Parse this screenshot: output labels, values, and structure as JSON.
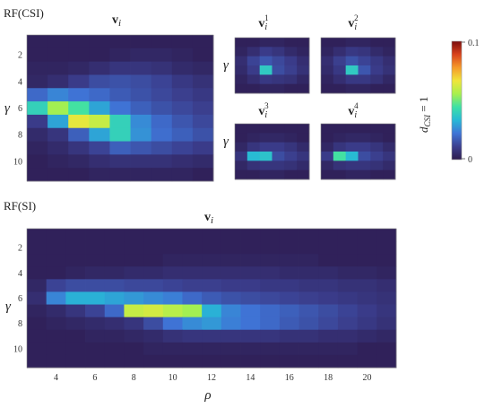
{
  "figure": {
    "section_labels": [
      "RF(CSI)",
      "RF(SI)"
    ],
    "side_label": "d_CSI = 1"
  },
  "colorbar": {
    "max_label": "0.1",
    "min_label": "0",
    "colormap": [
      "#2d1b4e",
      "#3b3f8f",
      "#3f74d6",
      "#27b9d6",
      "#3ee0a6",
      "#a8f04e",
      "#f0e53a",
      "#f59a2a",
      "#d9421c",
      "#7a0d0d"
    ]
  },
  "chart_data": [
    {
      "type": "heatmap",
      "title": "v_i",
      "panel": "RF(CSI)",
      "ylabel": "γ",
      "yticks": [
        "2",
        "4",
        "6",
        "8",
        "10"
      ],
      "rows": 11,
      "cols": 9,
      "values": [
        [
          0.002,
          0.002,
          0.002,
          0.002,
          0.002,
          0.002,
          0.002,
          0.002,
          0.002
        ],
        [
          0.002,
          0.002,
          0.002,
          0.002,
          0.003,
          0.004,
          0.004,
          0.003,
          0.002
        ],
        [
          0.003,
          0.003,
          0.004,
          0.006,
          0.008,
          0.008,
          0.007,
          0.005,
          0.004
        ],
        [
          0.004,
          0.006,
          0.01,
          0.014,
          0.015,
          0.014,
          0.012,
          0.009,
          0.007
        ],
        [
          0.02,
          0.025,
          0.022,
          0.02,
          0.017,
          0.015,
          0.013,
          0.011,
          0.009
        ],
        [
          0.04,
          0.055,
          0.045,
          0.03,
          0.022,
          0.018,
          0.015,
          0.013,
          0.011
        ],
        [
          0.01,
          0.03,
          0.065,
          0.06,
          0.04,
          0.026,
          0.02,
          0.016,
          0.013
        ],
        [
          0.005,
          0.008,
          0.018,
          0.03,
          0.04,
          0.027,
          0.021,
          0.018,
          0.015
        ],
        [
          0.003,
          0.005,
          0.008,
          0.012,
          0.018,
          0.016,
          0.014,
          0.012,
          0.01
        ],
        [
          0.002,
          0.003,
          0.004,
          0.006,
          0.007,
          0.007,
          0.007,
          0.006,
          0.005
        ],
        [
          0.002,
          0.002,
          0.002,
          0.003,
          0.003,
          0.003,
          0.003,
          0.003,
          0.002
        ]
      ]
    },
    {
      "type": "heatmap",
      "title": "v_i^1",
      "panel": "RF(CSI)",
      "ylabel": "γ",
      "rows": 6,
      "cols": 6,
      "values": [
        [
          0.002,
          0.002,
          0.003,
          0.003,
          0.002,
          0.002
        ],
        [
          0.003,
          0.006,
          0.01,
          0.008,
          0.005,
          0.003
        ],
        [
          0.006,
          0.012,
          0.016,
          0.013,
          0.01,
          0.006
        ],
        [
          0.005,
          0.01,
          0.038,
          0.014,
          0.011,
          0.007
        ],
        [
          0.003,
          0.006,
          0.009,
          0.008,
          0.007,
          0.004
        ],
        [
          0.002,
          0.002,
          0.003,
          0.003,
          0.002,
          0.002
        ]
      ]
    },
    {
      "type": "heatmap",
      "title": "v_i^2",
      "panel": "RF(CSI)",
      "rows": 6,
      "cols": 6,
      "values": [
        [
          0.002,
          0.002,
          0.003,
          0.003,
          0.002,
          0.002
        ],
        [
          0.003,
          0.006,
          0.009,
          0.008,
          0.005,
          0.003
        ],
        [
          0.006,
          0.011,
          0.015,
          0.012,
          0.009,
          0.006
        ],
        [
          0.005,
          0.009,
          0.038,
          0.016,
          0.01,
          0.007
        ],
        [
          0.003,
          0.006,
          0.009,
          0.009,
          0.007,
          0.004
        ],
        [
          0.002,
          0.002,
          0.003,
          0.003,
          0.002,
          0.002
        ]
      ]
    },
    {
      "type": "heatmap",
      "title": "v_i^3",
      "panel": "RF(CSI)",
      "ylabel": "γ",
      "rows": 6,
      "cols": 6,
      "values": [
        [
          0.002,
          0.002,
          0.002,
          0.002,
          0.002,
          0.002
        ],
        [
          0.002,
          0.003,
          0.004,
          0.004,
          0.003,
          0.002
        ],
        [
          0.004,
          0.008,
          0.01,
          0.01,
          0.008,
          0.005
        ],
        [
          0.008,
          0.034,
          0.036,
          0.014,
          0.011,
          0.008
        ],
        [
          0.004,
          0.007,
          0.008,
          0.008,
          0.007,
          0.005
        ],
        [
          0.002,
          0.002,
          0.003,
          0.003,
          0.002,
          0.002
        ]
      ]
    },
    {
      "type": "heatmap",
      "title": "v_i^4",
      "panel": "RF(CSI)",
      "rows": 6,
      "cols": 6,
      "values": [
        [
          0.002,
          0.002,
          0.002,
          0.002,
          0.002,
          0.002
        ],
        [
          0.002,
          0.003,
          0.004,
          0.004,
          0.003,
          0.002
        ],
        [
          0.004,
          0.008,
          0.01,
          0.01,
          0.008,
          0.005
        ],
        [
          0.01,
          0.045,
          0.034,
          0.014,
          0.011,
          0.008
        ],
        [
          0.004,
          0.007,
          0.008,
          0.008,
          0.007,
          0.005
        ],
        [
          0.002,
          0.002,
          0.003,
          0.003,
          0.002,
          0.002
        ]
      ]
    },
    {
      "type": "heatmap",
      "title": "v_i",
      "panel": "RF(SI)",
      "xlabel": "ρ",
      "ylabel": "γ",
      "xticks": [
        "4",
        "6",
        "8",
        "10",
        "12",
        "14",
        "16",
        "18",
        "20"
      ],
      "yticks": [
        "2",
        "4",
        "6",
        "8",
        "10"
      ],
      "rows": 11,
      "cols": 19,
      "values": [
        [
          0.002,
          0.002,
          0.002,
          0.002,
          0.002,
          0.002,
          0.002,
          0.002,
          0.002,
          0.002,
          0.002,
          0.002,
          0.002,
          0.002,
          0.002,
          0.002,
          0.002,
          0.002,
          0.002
        ],
        [
          0.002,
          0.002,
          0.002,
          0.002,
          0.002,
          0.002,
          0.002,
          0.002,
          0.002,
          0.002,
          0.002,
          0.002,
          0.002,
          0.002,
          0.002,
          0.002,
          0.002,
          0.002,
          0.002
        ],
        [
          0.002,
          0.002,
          0.002,
          0.002,
          0.002,
          0.002,
          0.002,
          0.003,
          0.003,
          0.003,
          0.003,
          0.003,
          0.003,
          0.003,
          0.003,
          0.002,
          0.002,
          0.002,
          0.002
        ],
        [
          0.002,
          0.002,
          0.003,
          0.004,
          0.004,
          0.005,
          0.005,
          0.006,
          0.006,
          0.006,
          0.006,
          0.006,
          0.006,
          0.005,
          0.005,
          0.005,
          0.004,
          0.004,
          0.003
        ],
        [
          0.004,
          0.012,
          0.014,
          0.014,
          0.014,
          0.013,
          0.013,
          0.012,
          0.011,
          0.011,
          0.01,
          0.01,
          0.009,
          0.009,
          0.008,
          0.008,
          0.007,
          0.007,
          0.006
        ],
        [
          0.006,
          0.025,
          0.032,
          0.032,
          0.03,
          0.028,
          0.026,
          0.024,
          0.02,
          0.017,
          0.015,
          0.014,
          0.013,
          0.012,
          0.011,
          0.01,
          0.009,
          0.008,
          0.007
        ],
        [
          0.003,
          0.005,
          0.008,
          0.012,
          0.02,
          0.06,
          0.062,
          0.058,
          0.055,
          0.032,
          0.025,
          0.022,
          0.02,
          0.018,
          0.016,
          0.014,
          0.012,
          0.01,
          0.008
        ],
        [
          0.002,
          0.003,
          0.004,
          0.005,
          0.006,
          0.008,
          0.014,
          0.022,
          0.026,
          0.028,
          0.024,
          0.022,
          0.02,
          0.017,
          0.015,
          0.013,
          0.011,
          0.009,
          0.007
        ],
        [
          0.002,
          0.002,
          0.002,
          0.003,
          0.003,
          0.004,
          0.005,
          0.007,
          0.008,
          0.008,
          0.008,
          0.008,
          0.008,
          0.007,
          0.007,
          0.006,
          0.006,
          0.005,
          0.004
        ],
        [
          0.002,
          0.002,
          0.002,
          0.002,
          0.002,
          0.002,
          0.003,
          0.003,
          0.003,
          0.003,
          0.003,
          0.003,
          0.003,
          0.003,
          0.003,
          0.003,
          0.003,
          0.002,
          0.002
        ],
        [
          0.002,
          0.002,
          0.002,
          0.002,
          0.002,
          0.002,
          0.002,
          0.002,
          0.002,
          0.002,
          0.002,
          0.002,
          0.002,
          0.002,
          0.002,
          0.002,
          0.002,
          0.002,
          0.002
        ]
      ]
    }
  ]
}
